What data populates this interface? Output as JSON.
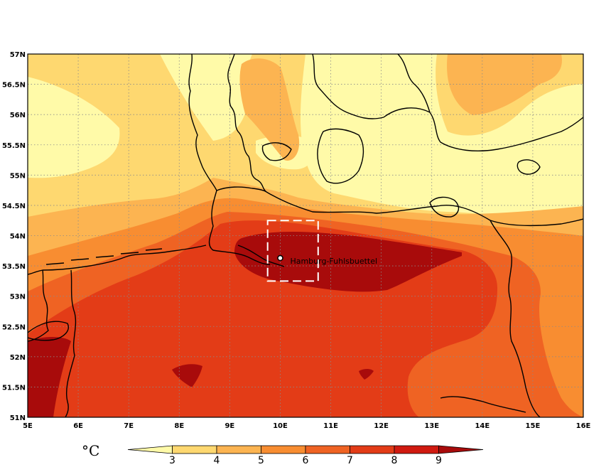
{
  "map": {
    "lon_labels": [
      "5E",
      "6E",
      "7E",
      "8E",
      "9E",
      "10E",
      "11E",
      "12E",
      "13E",
      "14E",
      "15E",
      "16E"
    ],
    "lat_labels": [
      "57N",
      "56.5N",
      "56N",
      "55.5N",
      "55N",
      "54.5N",
      "54N",
      "53.5N",
      "53N",
      "52.5N",
      "52N",
      "51.5N",
      "51N"
    ],
    "lon_range": [
      5,
      16
    ],
    "lat_range": [
      51,
      57
    ],
    "grid": "dotted",
    "station": {
      "label": "Hamburg-Fuhlsbuettel",
      "lon": 10.0,
      "lat": 53.63
    },
    "box": {
      "lon": [
        9.75,
        10.75
      ],
      "lat": [
        53.25,
        54.25
      ]
    }
  },
  "legend": {
    "unit": "°C",
    "values": [
      "3",
      "4",
      "5",
      "6",
      "7",
      "8",
      "9"
    ],
    "colors": [
      "#fffaa8",
      "#fed870",
      "#fcb451",
      "#f88d31",
      "#ef6323",
      "#e33c17",
      "#d01a10",
      "#a80b0b"
    ]
  },
  "colors": {
    "c1": "#fffaa8",
    "c2": "#fed870",
    "c3": "#fcb451",
    "c4": "#f88d31",
    "c5": "#ef6323",
    "c6": "#e33c17",
    "c7": "#d01a10",
    "c8": "#a80b0b"
  }
}
